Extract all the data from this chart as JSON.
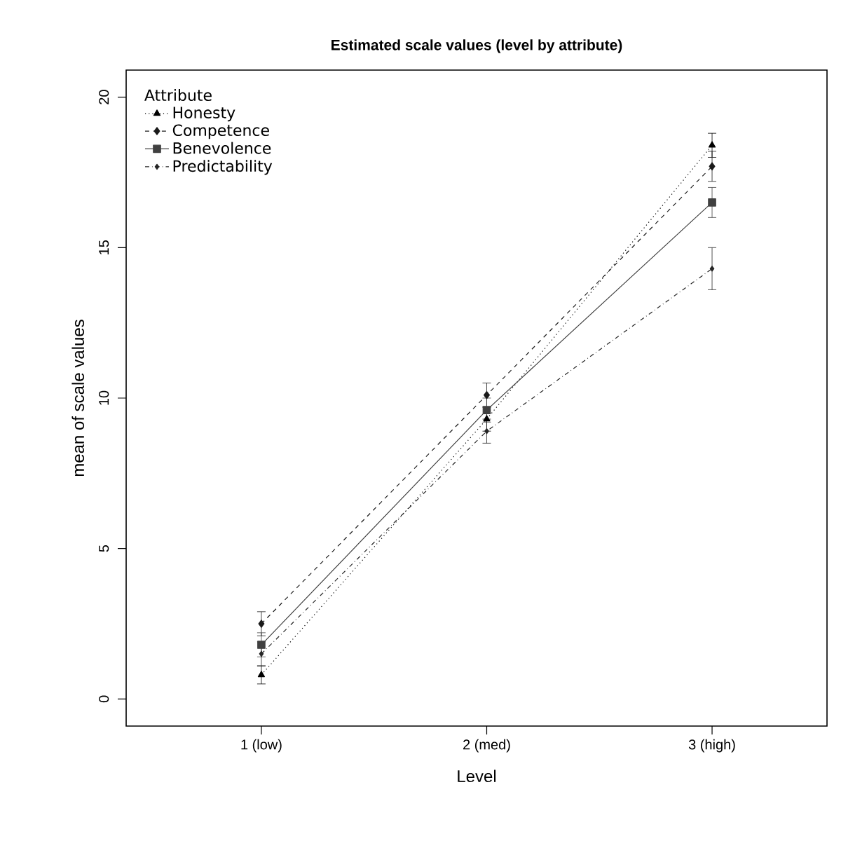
{
  "chart_data": {
    "type": "line",
    "title": "Estimated scale values (level by attribute)",
    "xlabel": "Level",
    "ylabel": "mean of scale values",
    "legend_title": "Attribute",
    "legend": "top left",
    "categories": [
      "1 (low)",
      "2 (med)",
      "3 (high)"
    ],
    "series": [
      {
        "name": "Honesty",
        "color": "#000000",
        "marker": "triangle",
        "line_style": "dotted",
        "values": [
          0.8,
          9.3,
          18.4
        ],
        "errors": [
          0.3,
          0.4,
          0.4
        ]
      },
      {
        "name": "Competence",
        "color": "#1a1a1a",
        "marker": "diamond",
        "line_style": "dashed",
        "values": [
          2.5,
          10.1,
          17.7
        ],
        "errors": [
          0.4,
          0.4,
          0.5
        ]
      },
      {
        "name": "Benevolence",
        "color": "#404040",
        "marker": "square",
        "line_style": "solid",
        "values": [
          1.8,
          9.6,
          16.5
        ],
        "errors": [
          0.4,
          0.4,
          0.5
        ]
      },
      {
        "name": "Predictability",
        "color": "#262626",
        "marker": "diamond",
        "line_style": "dashdot",
        "values": [
          1.5,
          8.9,
          14.3
        ],
        "errors": [
          0.4,
          0.4,
          0.7
        ]
      }
    ],
    "ylim": [
      -0.9,
      20.9
    ],
    "yticks": [
      0,
      5,
      10,
      15,
      20
    ]
  }
}
